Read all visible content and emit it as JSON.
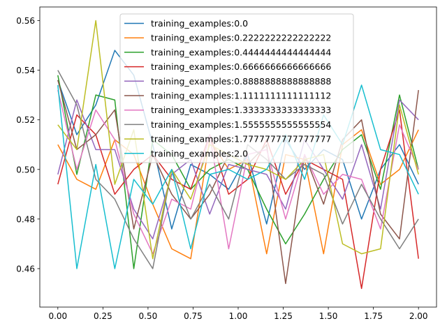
{
  "chart_data": {
    "type": "line",
    "title": "",
    "xlabel": "",
    "ylabel": "",
    "xlim": [
      -0.1,
      2.1
    ],
    "ylim": [
      0.4445,
      0.5655
    ],
    "xticks": [
      0.0,
      0.25,
      0.5,
      0.75,
      1.0,
      1.25,
      1.5,
      1.75,
      2.0
    ],
    "xtick_labels": [
      "0.00",
      "0.25",
      "0.50",
      "0.75",
      "1.00",
      "1.25",
      "1.50",
      "1.75",
      "2.00"
    ],
    "yticks": [
      0.46,
      0.48,
      0.5,
      0.52,
      0.54,
      0.56
    ],
    "ytick_labels": [
      "0.46",
      "0.48",
      "0.50",
      "0.52",
      "0.54",
      "0.56"
    ],
    "grid": false,
    "legend_position": "top-center",
    "x": [
      0.0,
      0.1053,
      0.2105,
      0.3158,
      0.4211,
      0.5263,
      0.6316,
      0.7368,
      0.8421,
      0.9474,
      1.0526,
      1.1579,
      1.2632,
      1.3684,
      1.4737,
      1.5789,
      1.6842,
      1.7895,
      1.8947,
      2.0
    ],
    "series": [
      {
        "name": "training_examples:0.0",
        "color": "#1f77b4",
        "values": [
          0.536,
          0.514,
          0.526,
          0.548,
          0.538,
          0.51,
          0.476,
          0.502,
          0.498,
          0.492,
          0.506,
          0.478,
          0.512,
          0.5,
          0.508,
          0.504,
          0.48,
          0.5,
          0.51,
          0.494
        ]
      },
      {
        "name": "training_examples:0.2222222222222222",
        "color": "#ff7f0e",
        "values": [
          0.51,
          0.496,
          0.492,
          0.512,
          0.506,
          0.486,
          0.468,
          0.464,
          0.512,
          0.5,
          0.504,
          0.466,
          0.506,
          0.504,
          0.466,
          0.51,
          0.516,
          0.494,
          0.5,
          0.516
        ]
      },
      {
        "name": "training_examples:0.4444444444444444",
        "color": "#2ca02c",
        "values": [
          0.538,
          0.498,
          0.53,
          0.528,
          0.46,
          0.512,
          0.506,
          0.492,
          0.5,
          0.504,
          0.5,
          0.484,
          0.47,
          0.482,
          0.496,
          0.508,
          0.514,
          0.492,
          0.53,
          0.5
        ]
      },
      {
        "name": "training_examples:0.6666666666666666",
        "color": "#d62728",
        "values": [
          0.494,
          0.522,
          0.514,
          0.49,
          0.5,
          0.506,
          0.496,
          0.492,
          0.514,
          0.49,
          0.496,
          0.512,
          0.49,
          0.504,
          0.5,
          0.496,
          0.452,
          0.5,
          0.524,
          0.464
        ]
      },
      {
        "name": "training_examples:0.8888888888888888",
        "color": "#9467bd",
        "values": [
          0.498,
          0.528,
          0.508,
          0.508,
          0.484,
          0.472,
          0.498,
          0.504,
          0.482,
          0.502,
          0.5,
          0.498,
          0.484,
          0.512,
          0.5,
          0.488,
          0.51,
          0.484,
          0.528,
          0.52
        ]
      },
      {
        "name": "training_examples:1.1111111111111112",
        "color": "#8c564b",
        "values": [
          0.536,
          0.508,
          0.514,
          0.524,
          0.476,
          0.506,
          0.49,
          0.48,
          0.49,
          0.506,
          0.502,
          0.51,
          0.454,
          0.506,
          0.486,
          0.512,
          0.52,
          0.482,
          0.472,
          0.532
        ]
      },
      {
        "name": "training_examples:1.3333333333333333",
        "color": "#e377c2",
        "values": [
          0.532,
          0.5,
          0.524,
          0.512,
          0.482,
          0.466,
          0.488,
          0.484,
          0.514,
          0.468,
          0.506,
          0.508,
          0.48,
          0.506,
          0.49,
          0.498,
          0.496,
          0.476,
          0.518,
          0.5
        ]
      },
      {
        "name": "training_examples:1.5555555555555554",
        "color": "#7f7f7f",
        "values": [
          0.54,
          0.526,
          0.496,
          0.488,
          0.472,
          0.46,
          0.5,
          0.48,
          0.494,
          0.48,
          0.51,
          0.504,
          0.496,
          0.502,
          0.498,
          0.478,
          0.494,
          0.48,
          0.468,
          0.48
        ]
      },
      {
        "name": "training_examples:1.7777777777777777",
        "color": "#bcbd22",
        "values": [
          0.518,
          0.508,
          0.56,
          0.494,
          0.516,
          0.464,
          0.5,
          0.488,
          0.51,
          0.506,
          0.502,
          0.5,
          0.496,
          0.504,
          0.506,
          0.47,
          0.466,
          0.468,
          0.526,
          0.498
        ]
      },
      {
        "name": "training_examples:2.0",
        "color": "#17becf",
        "values": [
          0.534,
          0.46,
          0.502,
          0.46,
          0.496,
          0.486,
          0.5,
          0.468,
          0.498,
          0.5,
          0.496,
          0.5,
          0.514,
          0.496,
          0.522,
          0.51,
          0.534,
          0.508,
          0.506,
          0.49
        ]
      }
    ]
  }
}
